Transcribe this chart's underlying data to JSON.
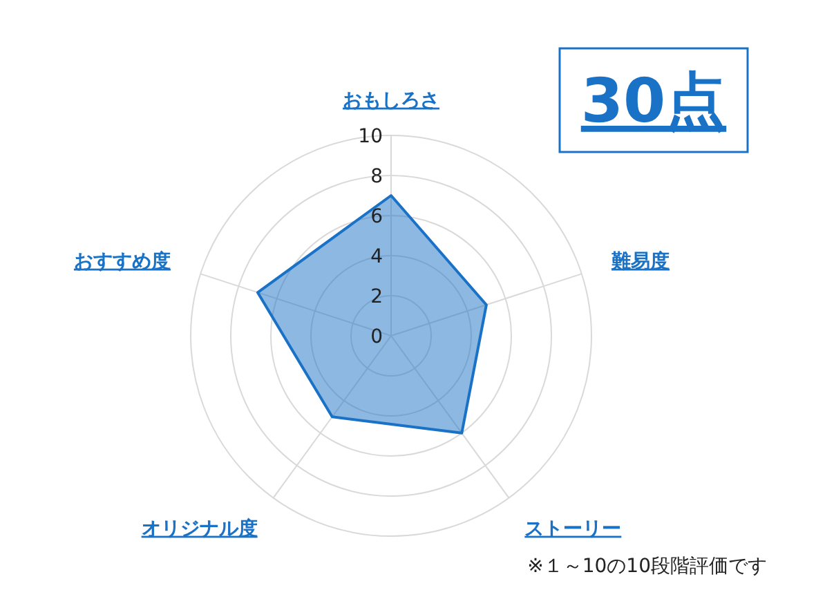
{
  "chart_data": {
    "type": "radar",
    "categories": [
      "おもしろさ",
      "難易度",
      "ストーリー",
      "オリジナル度",
      "おすすめ度"
    ],
    "series": [
      {
        "color": "#1a72c6",
        "values": [
          7,
          5,
          6,
          5,
          7
        ]
      }
    ],
    "ylim": [
      0,
      10
    ],
    "yticks": [
      0,
      2,
      4,
      6,
      8,
      10
    ],
    "grid": true,
    "marker": "none",
    "annotations": [
      "30点",
      "※１～10の10段階評価です"
    ]
  }
}
